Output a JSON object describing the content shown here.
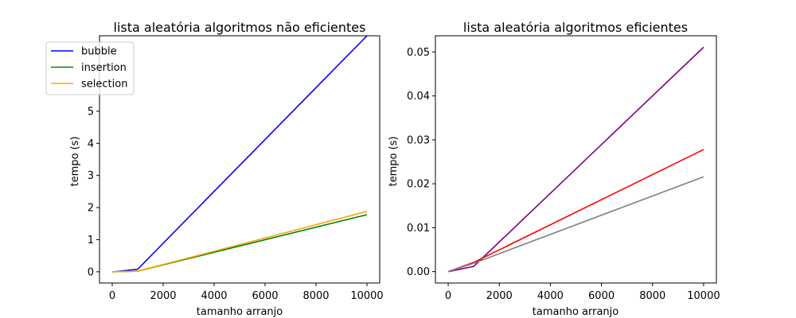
{
  "chart_data": [
    {
      "type": "line",
      "title": "lista aleatória algoritmos não eficientes",
      "xlabel": "tamanho arranjo",
      "ylabel": "tempo (s)",
      "xlim": [
        -500,
        10500
      ],
      "ylim": [
        -0.35,
        7.35
      ],
      "xticks": [
        0,
        2000,
        4000,
        6000,
        8000,
        10000
      ],
      "yticks": [
        0,
        1,
        2,
        3,
        4,
        5
      ],
      "legend": "top-left",
      "grid": false,
      "x": [
        0,
        100,
        1000,
        10000
      ],
      "series": [
        {
          "name": "bubble",
          "color": "#0000ff",
          "values": [
            0,
            0.001,
            0.08,
            7.35
          ]
        },
        {
          "name": "insertion",
          "color": "#008000",
          "values": [
            0,
            0.0005,
            0.02,
            1.78
          ]
        },
        {
          "name": "selection",
          "color": "#ffa500",
          "values": [
            0,
            0.0005,
            0.02,
            1.88
          ]
        }
      ]
    },
    {
      "type": "line",
      "title": "lista aleatória algoritmos eficientes",
      "xlabel": "tamanho arranjo",
      "ylabel": "tempo (s)",
      "xlim": [
        -500,
        10500
      ],
      "ylim": [
        -0.0026,
        0.0537
      ],
      "xticks": [
        0,
        2000,
        4000,
        6000,
        8000,
        10000
      ],
      "yticks": [
        0.0,
        0.01,
        0.02,
        0.03,
        0.04,
        0.05
      ],
      "ytick_decimals": 2,
      "grid": false,
      "x": [
        0,
        100,
        1000,
        10000
      ],
      "series": [
        {
          "color": "#800080",
          "values": [
            0,
            0.0001,
            0.0012,
            0.0511
          ]
        },
        {
          "color": "#ff0000",
          "values": [
            0,
            0.0002,
            0.0021,
            0.0278
          ]
        },
        {
          "color": "#808080",
          "values": [
            0,
            0.0002,
            0.0019,
            0.0216
          ]
        }
      ]
    }
  ]
}
